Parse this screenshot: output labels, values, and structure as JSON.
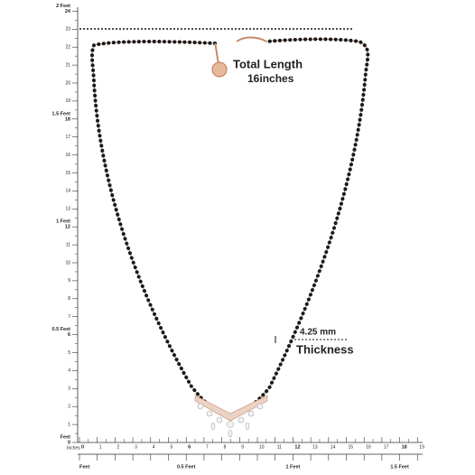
{
  "left_ruler": {
    "unit": "Inches",
    "inches": [
      0,
      1,
      2,
      3,
      4,
      5,
      6,
      7,
      8,
      9,
      10,
      11,
      12,
      13,
      14,
      15,
      16,
      17,
      18,
      19,
      20,
      21,
      22,
      23,
      24
    ],
    "feet_labels": [
      "Feet",
      "0.5 Feet",
      "1 Feet",
      "1.5 Feet",
      "2 Feet"
    ]
  },
  "bottom_ruler": {
    "unit": "Inches",
    "inches": [
      0,
      1,
      2,
      3,
      4,
      5,
      6,
      7,
      8,
      9,
      10,
      11,
      12,
      13,
      14,
      15,
      16,
      17,
      18,
      19
    ],
    "feet_labels": [
      "Feet",
      "0.5 Feet",
      "1 Feet",
      "1.5 Feet"
    ]
  },
  "length_annotation": {
    "label": "Total Length",
    "value": "16",
    "unit": "inches"
  },
  "thickness_annotation": {
    "value": "4.25 mm",
    "label": "Thickness"
  }
}
